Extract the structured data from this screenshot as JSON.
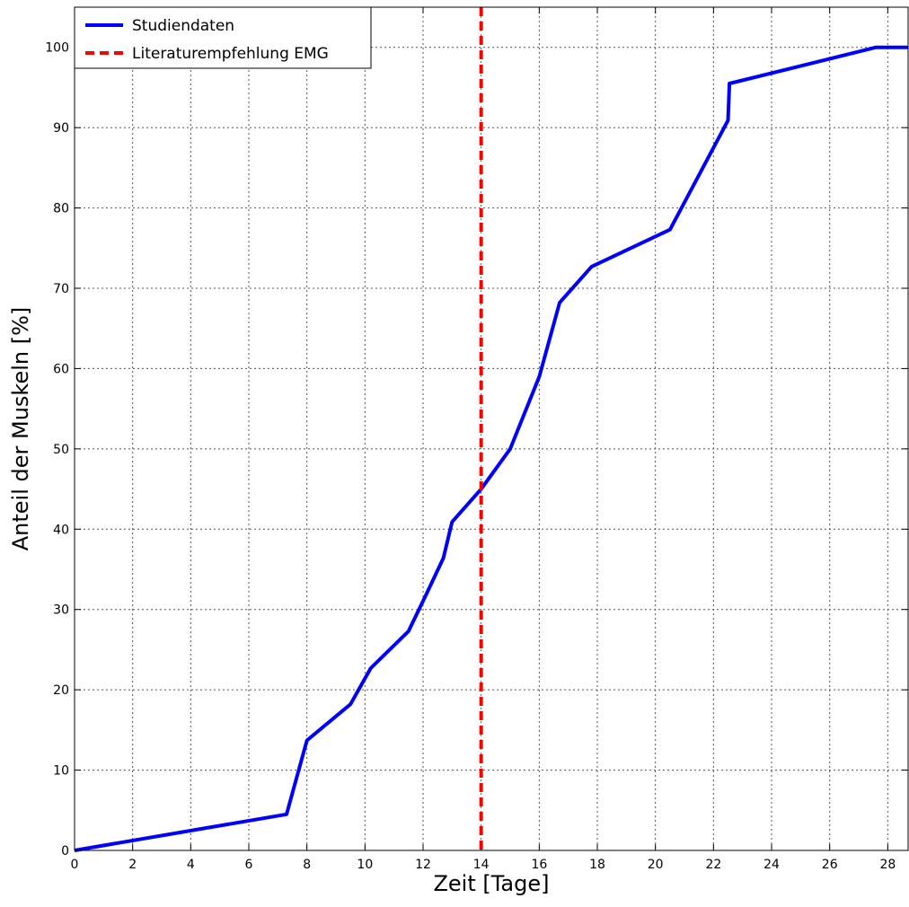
{
  "chart_data": {
    "type": "line",
    "title": "",
    "xlabel": "Zeit [Tage]",
    "ylabel": "Anteil der Muskeln [%]",
    "xlim": [
      0,
      28.7
    ],
    "ylim": [
      0,
      105
    ],
    "xticks": [
      0,
      2,
      4,
      6,
      8,
      10,
      12,
      14,
      16,
      18,
      20,
      22,
      24,
      26,
      28
    ],
    "yticks": [
      0,
      10,
      20,
      30,
      40,
      50,
      60,
      70,
      80,
      90,
      100
    ],
    "grid": true,
    "legend_position": "top-left",
    "series": [
      {
        "name": "Studiendaten",
        "color": "#0000ff",
        "style": "solid",
        "x": [
          0,
          7.3,
          8.0,
          9.5,
          10.2,
          11.5,
          12.1,
          12.7,
          13.0,
          14.0,
          15.0,
          16.0,
          16.7,
          17.8,
          20.5,
          22.5,
          22.55,
          27.6,
          28.7
        ],
        "y": [
          0,
          4.5,
          13.7,
          18.2,
          22.7,
          27.3,
          31.8,
          36.4,
          40.9,
          45.0,
          50.0,
          59.0,
          68.2,
          72.7,
          77.3,
          90.9,
          95.5,
          100,
          100
        ]
      },
      {
        "name": "Literaturempfehlung EMG",
        "color": "#ff0000",
        "style": "dashed",
        "vline_x": 14
      }
    ]
  }
}
